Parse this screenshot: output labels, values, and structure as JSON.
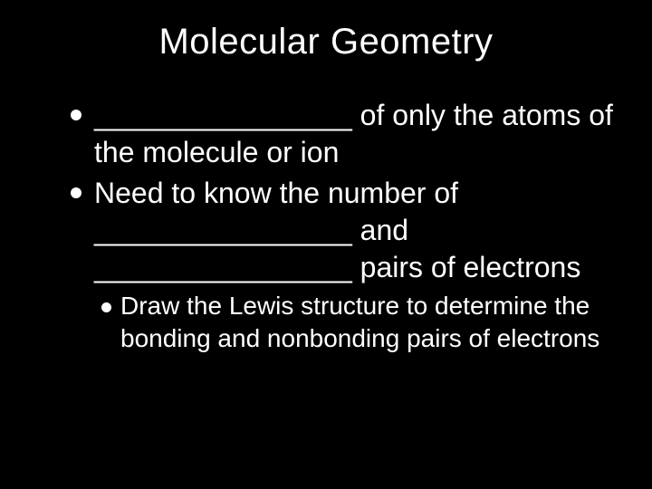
{
  "slide": {
    "background_color": "#000000",
    "text_color": "#ffffff",
    "title_fontsize": 40,
    "body_fontsize_l1": 32,
    "body_fontsize_l2": 28,
    "bullet_color": "#ffffff",
    "title": "Molecular Geometry",
    "bullets": [
      {
        "level": 1,
        "text": "________________ of only the atoms of the molecule or ion"
      },
      {
        "level": 1,
        "text": "Need to know the number of ________________ and ________________ pairs of electrons"
      },
      {
        "level": 2,
        "text": "Draw the Lewis structure to determine the bonding and nonbonding pairs of electrons"
      }
    ]
  }
}
